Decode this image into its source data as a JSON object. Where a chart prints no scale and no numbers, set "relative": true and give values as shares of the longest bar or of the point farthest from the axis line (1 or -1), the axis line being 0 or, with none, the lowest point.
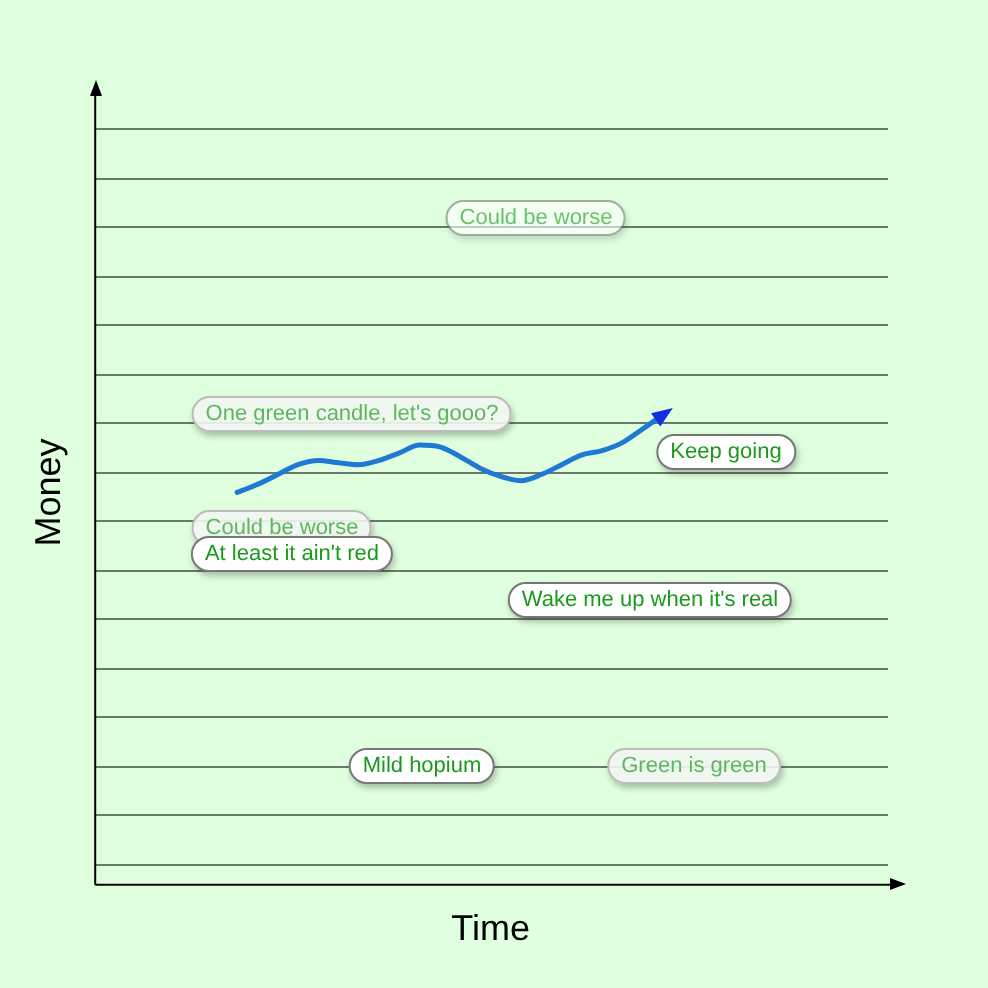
{
  "chart_data": {
    "type": "line",
    "xlabel": "Time",
    "ylabel": "Money",
    "relative": true,
    "legend": false,
    "categories": [
      null,
      null,
      null,
      null,
      null,
      null,
      null,
      null,
      null,
      null,
      null,
      null,
      null,
      null,
      null,
      null,
      null,
      null,
      null,
      null,
      null,
      null,
      null,
      null,
      null,
      null,
      null,
      null,
      null,
      null,
      null,
      null,
      null,
      null,
      null,
      null,
      null,
      null,
      null,
      null
    ],
    "series": [
      {
        "color": "#1f78d1",
        "values": [
          null,
          null,
          null,
          null,
          null,
          null,
          null,
          0.835,
          0.852,
          0.873,
          0.894,
          0.903,
          0.898,
          0.894,
          0.903,
          0.919,
          0.936,
          0.932,
          0.911,
          0.886,
          0.869,
          0.86,
          0.873,
          0.894,
          0.915,
          0.924,
          0.941,
          0.97,
          1,
          null,
          null,
          null,
          null,
          null,
          null,
          null,
          null,
          null,
          null,
          null
        ]
      }
    ],
    "annotations": [
      "Could be worse",
      "One green candle, let's gooo?",
      "Keep going",
      "Could be worse",
      "At least it ain't red",
      "Wake me up when it's real",
      "Mild hopium",
      "Green is green"
    ]
  }
}
